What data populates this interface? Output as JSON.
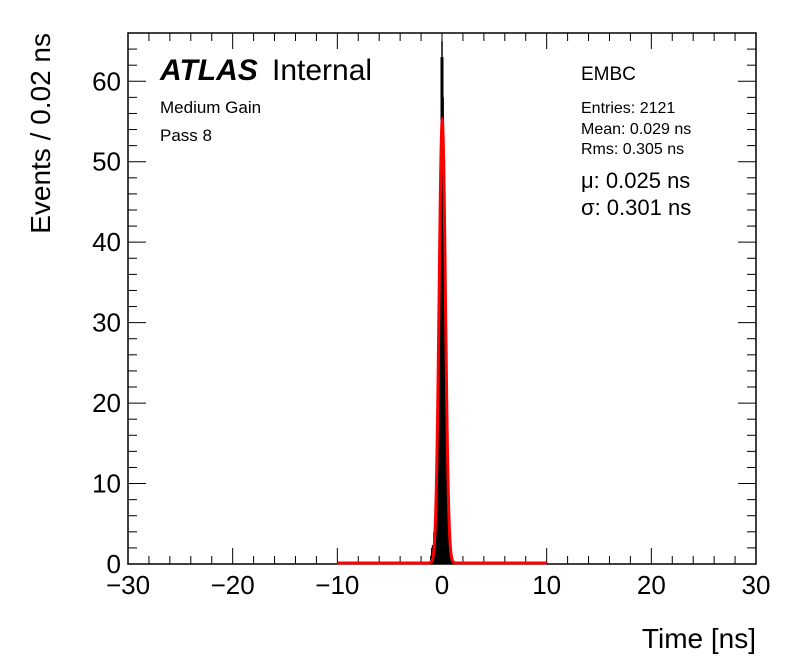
{
  "chart_data": {
    "type": "histogram",
    "xlabel": "Time [ns]",
    "ylabel": "Events / 0.02 ns",
    "xlim": [
      -30,
      30
    ],
    "ylim": [
      0,
      66
    ],
    "x_ticks": [
      -30,
      -20,
      -10,
      0,
      10,
      20,
      30
    ],
    "y_ticks": [
      0,
      10,
      20,
      30,
      40,
      50,
      60
    ],
    "x_tick_labels": [
      "−30",
      "−20",
      "−10",
      "0",
      "10",
      "20",
      "30"
    ],
    "y_tick_labels": [
      "0",
      "10",
      "20",
      "30",
      "40",
      "50",
      "60"
    ],
    "grid": false,
    "bin_width": 0.02,
    "histogram": {
      "color": "#000000",
      "bins": [
        [
          -1.0,
          1
        ],
        [
          -0.9,
          2
        ],
        [
          -0.8,
          2
        ],
        [
          -0.7,
          4
        ],
        [
          -0.6,
          3
        ],
        [
          -0.5,
          8
        ],
        [
          -0.4,
          12
        ],
        [
          -0.3,
          18
        ],
        [
          -0.2,
          30
        ],
        [
          -0.1,
          45
        ],
        [
          -0.04,
          52
        ],
        [
          0.0,
          63
        ],
        [
          0.04,
          58
        ],
        [
          0.1,
          50
        ],
        [
          0.2,
          38
        ],
        [
          0.3,
          24
        ],
        [
          0.4,
          14
        ],
        [
          0.5,
          8
        ],
        [
          0.6,
          5
        ],
        [
          0.7,
          3
        ],
        [
          0.8,
          2
        ],
        [
          0.9,
          1
        ]
      ]
    },
    "fit": {
      "color": "#ff0000",
      "mu": 0.025,
      "sigma": 0.301,
      "amplitude": 55,
      "range": [
        -10,
        10
      ]
    }
  },
  "labels": {
    "atlas": "ATLAS",
    "internal": "Internal",
    "gain": "Medium Gain",
    "pass": "Pass 8",
    "region": "EMBC",
    "entries": "Entries: 2121",
    "mean": "Mean: 0.029 ns",
    "rms": "Rms: 0.305 ns",
    "mu_fit": "μ: 0.025 ns",
    "sigma_fit": "σ: 0.301 ns"
  }
}
